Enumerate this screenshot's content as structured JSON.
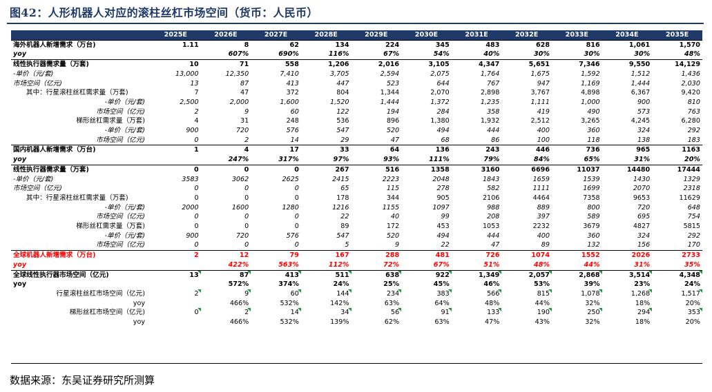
{
  "title": "图42：人形机器人对应的滚柱丝杠市场空间（货币：人民币）",
  "source": "数据来源：东吴证券研究所测算",
  "header": [
    "",
    "2025E",
    "2026E",
    "2027E",
    "2028E",
    "2029E",
    "2030E",
    "2031E",
    "2032E",
    "2033E",
    "2034E",
    "2035E"
  ],
  "rows": [
    {
      "style": "b top",
      "align": "c",
      "cells": [
        "海外机器人新增需求（万台)",
        "1.11",
        "8",
        "62",
        "134",
        "224",
        "345",
        "483",
        "628",
        "816",
        "1,061",
        "1,570"
      ]
    },
    {
      "style": "b i",
      "align": "c",
      "cells": [
        "yoy",
        "",
        "607%",
        "690%",
        "116%",
        "67%",
        "54%",
        "40%",
        "30%",
        "30%",
        "30%",
        "48%"
      ]
    },
    {
      "style": "b top",
      "cells": [
        "线性执行器需求量（万套)",
        "10",
        "71",
        "558",
        "1,206",
        "2,016",
        "3,105",
        "4,347",
        "5,651",
        "7,346",
        "9,550",
        "14,129"
      ]
    },
    {
      "style": "i",
      "cells": [
        "-单价（元/套)",
        "13,000",
        "12,350",
        "7,410",
        "3,705",
        "2,594",
        "2,075",
        "1,764",
        "1,675",
        "1,592",
        "1,512",
        "1,436"
      ]
    },
    {
      "style": "i",
      "cells": [
        "市场空间（亿元)",
        "13",
        "87",
        "413",
        "447",
        "523",
        "644",
        "767",
        "947",
        "1,169",
        "1,444",
        "2,030"
      ]
    },
    {
      "style": "",
      "lbl": "indent1",
      "cells": [
        "其中：行星滚柱丝杠需求量（万套)",
        "7",
        "47",
        "372",
        "804",
        "1,344",
        "2,070",
        "2,898",
        "3,767",
        "4,898",
        "6,367",
        "9,420"
      ]
    },
    {
      "style": "i",
      "lbl": "right",
      "cells": [
        "-单价（元/套)",
        "2,500",
        "2,000",
        "1,600",
        "1,520",
        "1,444",
        "1,372",
        "1,235",
        "1,111",
        "1,000",
        "900",
        "810"
      ]
    },
    {
      "style": "i",
      "lbl": "right",
      "cells": [
        "市场空间（亿元)",
        "2",
        "9",
        "60",
        "122",
        "194",
        "284",
        "358",
        "419",
        "490",
        "573",
        "763"
      ]
    },
    {
      "style": "",
      "lbl": "right",
      "cells": [
        "梯形丝杠需求量（万套)",
        "4",
        "31",
        "248",
        "536",
        "896",
        "1,380",
        "1,932",
        "2,512",
        "3,265",
        "4,245",
        "6,280"
      ]
    },
    {
      "style": "i",
      "lbl": "right",
      "cells": [
        "-单价（元/套)",
        "900",
        "720",
        "576",
        "547",
        "520",
        "494",
        "444",
        "400",
        "360",
        "324",
        "292"
      ]
    },
    {
      "style": "i",
      "lbl": "right",
      "cells": [
        "市场空间（亿元)",
        "0",
        "2",
        "14",
        "29",
        "47",
        "68",
        "86",
        "100",
        "118",
        "138",
        "183"
      ]
    },
    {
      "style": "b top",
      "align": "c",
      "cells": [
        "国内机器人新增需求（万台)",
        "1",
        "4",
        "17",
        "33",
        "64",
        "136",
        "243",
        "446",
        "736",
        "965",
        "1163"
      ]
    },
    {
      "style": "b i",
      "align": "c",
      "cells": [
        "yoy",
        "",
        "247%",
        "317%",
        "97%",
        "93%",
        "111%",
        "79%",
        "84%",
        "65%",
        "31%",
        "20%"
      ]
    },
    {
      "style": "b top",
      "cells": [
        "线性执行器需求量（万套)",
        "0",
        "0",
        "0",
        "267",
        "516",
        "1358",
        "3160",
        "6696",
        "11037",
        "14480",
        "17444"
      ]
    },
    {
      "style": "i",
      "cells": [
        "-单价（元/套)",
        "3583",
        "3062",
        "2625",
        "2415",
        "2223",
        "2048",
        "1843",
        "1659",
        "1539",
        "1430",
        "1329"
      ]
    },
    {
      "style": "i",
      "cells": [
        "市场空间（亿元)",
        "0",
        "0",
        "0",
        "65",
        "115",
        "278",
        "582",
        "1111",
        "1699",
        "2070",
        "2318"
      ]
    },
    {
      "style": "",
      "lbl": "indent1",
      "cells": [
        "其中：行星滚柱丝杠需求量（万套)",
        "0",
        "0",
        "0",
        "178",
        "344",
        "905",
        "2106",
        "4464",
        "7358",
        "9653",
        "11629"
      ]
    },
    {
      "style": "i",
      "lbl": "right",
      "cells": [
        "-单价（元/套)",
        "2000",
        "1600",
        "1280",
        "1216",
        "1155",
        "1097",
        "988",
        "889",
        "800",
        "720",
        "648"
      ]
    },
    {
      "style": "i",
      "lbl": "right",
      "cells": [
        "市场空间（亿元)",
        "0",
        "0",
        "0",
        "22",
        "40",
        "99",
        "208",
        "397",
        "589",
        "695",
        "754"
      ]
    },
    {
      "style": "",
      "lbl": "right",
      "cells": [
        "梯形丝杠需求量（万套)",
        "0",
        "0",
        "0",
        "89",
        "172",
        "453",
        "1053",
        "2232",
        "3679",
        "4827",
        "5815"
      ]
    },
    {
      "style": "i",
      "lbl": "right",
      "cells": [
        "-单价（元/套)",
        "900",
        "720",
        "576",
        "547",
        "520",
        "494",
        "444",
        "400",
        "360",
        "324",
        "292"
      ]
    },
    {
      "style": "i",
      "lbl": "right",
      "cells": [
        "市场空间（亿元)",
        "0",
        "0",
        "0",
        "5",
        "9",
        "22",
        "47",
        "89",
        "132",
        "156",
        "170"
      ]
    },
    {
      "style": "b r top",
      "align": "c",
      "cells": [
        "全球机器人新增需求（万台)",
        "2",
        "12",
        "79",
        "167",
        "288",
        "481",
        "726",
        "1074",
        "1552",
        "2026",
        "2733"
      ]
    },
    {
      "style": "b i r",
      "align": "c",
      "cells": [
        "yoy",
        "",
        "422%",
        "563%",
        "112%",
        "72%",
        "67%",
        "51%",
        "48%",
        "44%",
        "31%",
        "35%"
      ]
    },
    {
      "style": "b top",
      "tri": true,
      "cells": [
        "全球线性执行器市场空间（亿元)",
        "13",
        "87",
        "413",
        "511",
        "638",
        "922",
        "1,349",
        "2,057",
        "2,868",
        "3,514",
        "4,348"
      ]
    },
    {
      "style": "b",
      "cells": [
        "yoy",
        "",
        "572%",
        "374%",
        "24%",
        "25%",
        "45%",
        "46%",
        "53%",
        "39%",
        "23%",
        "24%"
      ]
    },
    {
      "style": "",
      "lbl": "right",
      "tri": true,
      "cells": [
        "行星滚柱丝杠市场空间（亿元)",
        "2",
        "9",
        "60",
        "144",
        "234",
        "383",
        "566",
        "815",
        "1,078",
        "1,268",
        "1,517"
      ]
    },
    {
      "style": "",
      "lbl": "right",
      "cells": [
        "yoy",
        "",
        "466%",
        "532%",
        "142%",
        "63%",
        "64%",
        "48%",
        "44%",
        "32%",
        "18%",
        "20%"
      ]
    },
    {
      "style": "",
      "lbl": "right",
      "tri": true,
      "cells": [
        "梯形丝杠市场空间（亿元)",
        "0",
        "2",
        "14",
        "34",
        "56",
        "91",
        "133",
        "190",
        "250",
        "294",
        "353"
      ]
    },
    {
      "style": "",
      "lbl": "right",
      "cells": [
        "yoy",
        "",
        "466%",
        "532%",
        "139%",
        "62%",
        "63%",
        "47%",
        "43%",
        "32%",
        "18%",
        "20%"
      ]
    }
  ]
}
